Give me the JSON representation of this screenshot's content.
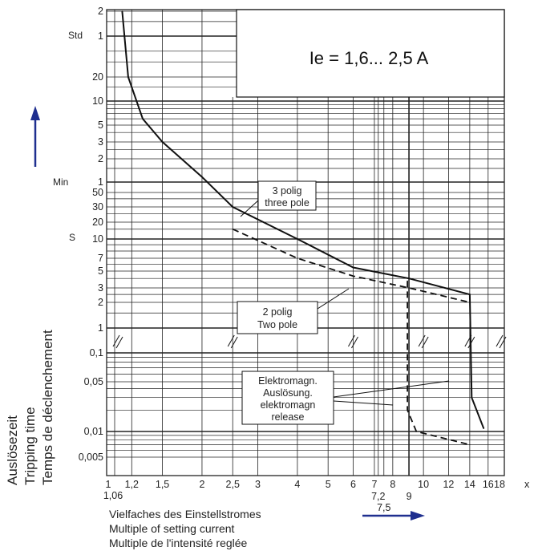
{
  "chart_data": {
    "type": "line",
    "title": "Ie = 1,6... 2,5 A",
    "xlabel": [
      "Vielfaches des Einstellstromes",
      "Multiple of setting current",
      "Multiple de l'intensité reglée"
    ],
    "ylabel": [
      "Auslösezeit",
      "Tripping time",
      "Temps de déclenchement"
    ],
    "x_axis": {
      "scale": "log",
      "xlim": [
        1,
        18
      ],
      "tick_labels": [
        "1",
        "1,06",
        "1,2",
        "1,5",
        "2",
        "2,5",
        "3",
        "4",
        "5",
        "6",
        "7",
        "7,2",
        "7,5",
        "8",
        "9",
        "10",
        "12",
        "14",
        "16",
        "18"
      ],
      "unit": "x"
    },
    "y_axis": {
      "scale": "log",
      "broken": true,
      "unit_labels": [
        "Std",
        "Min",
        "S"
      ],
      "hours_ticks": [
        "2",
        "1"
      ],
      "minutes_ticks": [
        "20",
        "10",
        "5",
        "3",
        "2",
        "1"
      ],
      "seconds_ticks": [
        "50",
        "30",
        "20",
        "10",
        "7",
        "5",
        "3",
        "2",
        "1"
      ],
      "lower_ticks": [
        "0,1",
        "0,05",
        "0,01",
        "0,005"
      ]
    },
    "series": [
      {
        "name": "3 polig three pole",
        "style": "solid",
        "points": [
          {
            "x": 1.12,
            "y": "2 h"
          },
          {
            "x": 1.17,
            "y": "20 min"
          },
          {
            "x": 1.3,
            "y": "6 min"
          },
          {
            "x": 1.5,
            "y": "3 min"
          },
          {
            "x": 2,
            "y": "70 s"
          },
          {
            "x": 2.5,
            "y": "30 s"
          },
          {
            "x": 4,
            "y": "10 s"
          },
          {
            "x": 6,
            "y": "5.5 s"
          },
          {
            "x": 9,
            "y": "4 s"
          },
          {
            "x": 14,
            "y": "2.5 s"
          },
          {
            "x": 14.2,
            "y": "0.03 s"
          },
          {
            "x": 15.5,
            "y": "0.011 s"
          }
        ]
      },
      {
        "name": "2 polig Two pole",
        "style": "dashed",
        "points": [
          {
            "x": 2.5,
            "y": "15 s"
          },
          {
            "x": 4,
            "y": "7 s"
          },
          {
            "x": 6,
            "y": "4.3 s"
          },
          {
            "x": 9,
            "y": "3 s"
          },
          {
            "x": 14,
            "y": "2 s"
          },
          {
            "x": 8.9,
            "y": "3.7 s"
          },
          {
            "x": 8.9,
            "y": "0.02 s"
          },
          {
            "x": 9.5,
            "y": "0.01 s"
          },
          {
            "x": 14,
            "y": "0.007 s"
          }
        ]
      }
    ],
    "annotations": [
      {
        "lines": [
          "3 polig",
          "three pole"
        ]
      },
      {
        "lines": [
          "2 polig",
          "Two pole"
        ]
      },
      {
        "lines": [
          "Elektromagn.",
          "Auslösung.",
          "elektromagn",
          "release"
        ]
      }
    ],
    "grid": true
  },
  "colors": {
    "arrow": "#1f2f8f",
    "line": "#111111",
    "grid": "#222222"
  }
}
